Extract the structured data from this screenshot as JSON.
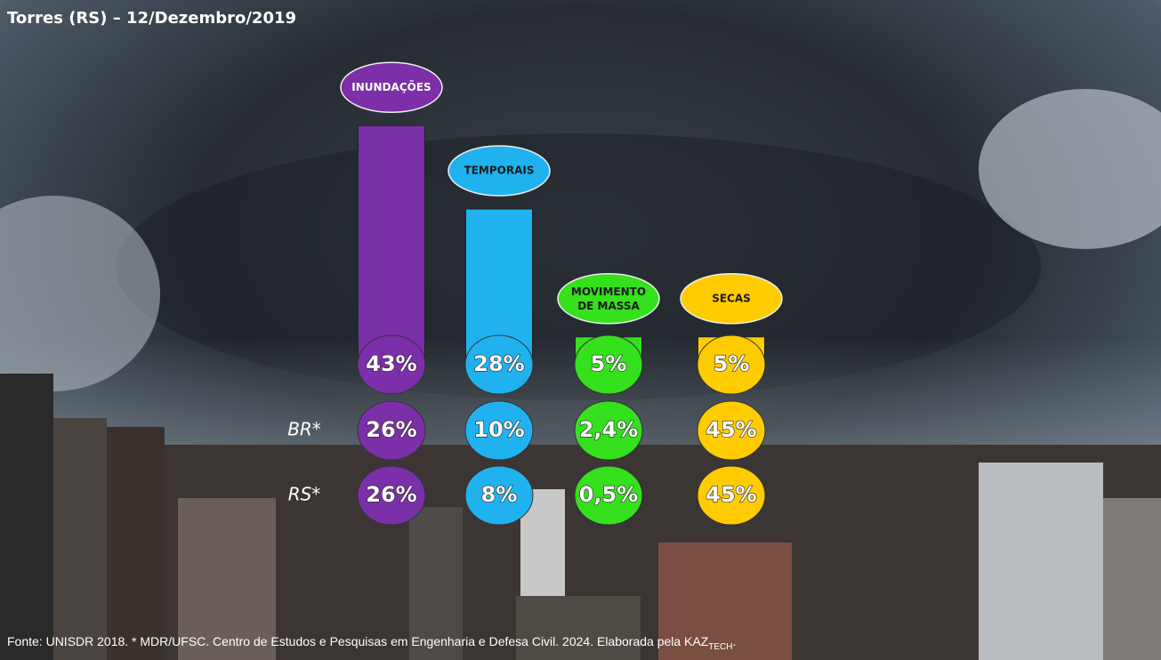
{
  "chart_data": {
    "type": "bar",
    "title": "Torres (RS) – 12/Dezembro/2019",
    "categories": [
      "INUNDAÇÕES",
      "TEMPORAIS",
      "MOVIMENTO DE MASSA",
      "SECAS"
    ],
    "colors": [
      "#7b2fa8",
      "#1fb2ef",
      "#35e01c",
      "#ffcc00"
    ],
    "values": [
      43,
      28,
      5,
      5
    ],
    "value_labels": [
      "43%",
      "28%",
      "5%",
      "5%"
    ],
    "rows": [
      {
        "name": "BR*",
        "values": [
          26,
          10,
          2.4,
          45
        ],
        "value_labels": [
          "26%",
          "10%",
          "2,4%",
          "45%"
        ]
      },
      {
        "name": "RS*",
        "values": [
          26,
          8,
          0.5,
          45
        ],
        "value_labels": [
          "26%",
          "8%",
          "0,5%",
          "45%"
        ]
      }
    ],
    "source": "Fonte: UNISDR 2018. * MDR/UFSC. Centro de Estudos e Pesquisas em Engenharia e Defesa Civil. 2024. Elaborada pela KAZ",
    "source_sub": "TECH",
    "source_end": "."
  }
}
